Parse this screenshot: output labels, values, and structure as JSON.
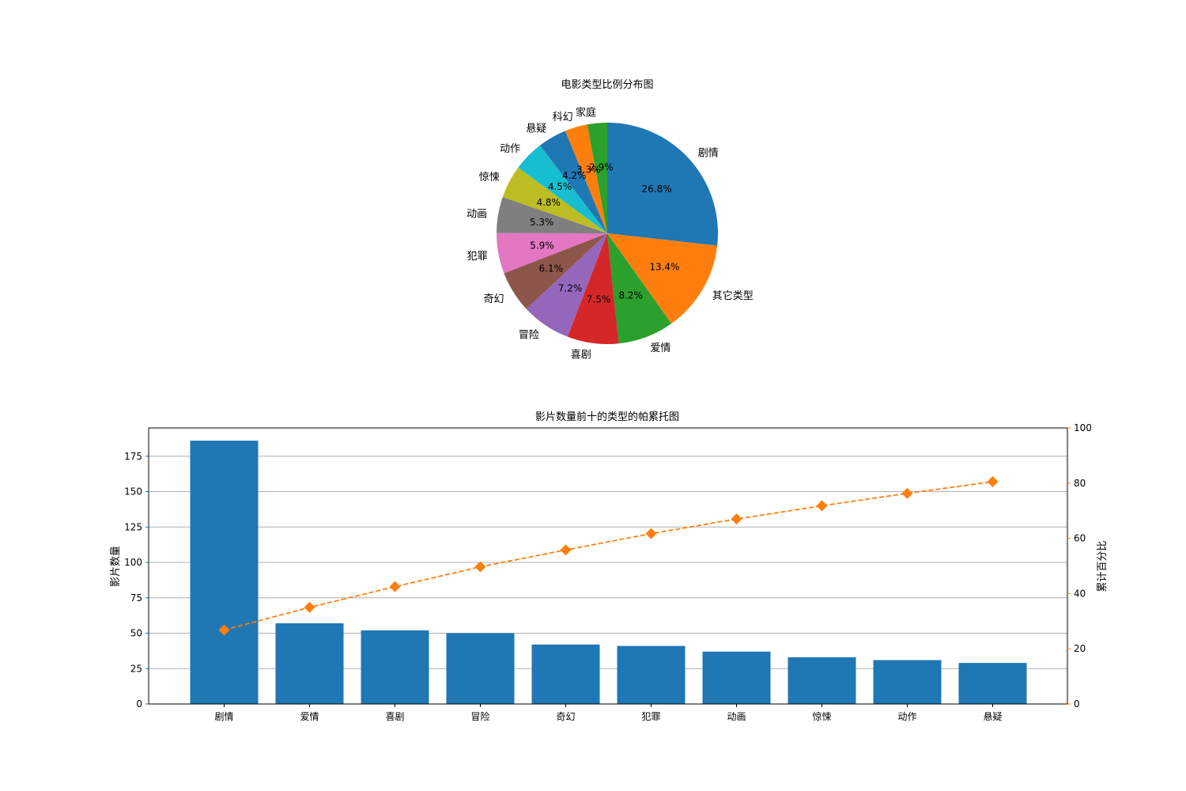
{
  "chart_data": [
    {
      "type": "pie",
      "title": "电影类型比例分布图",
      "slices": [
        {
          "label": "剧情",
          "pct": 26.8,
          "pct_label": "26.8%",
          "color": "#1f77b4"
        },
        {
          "label": "其它类型",
          "pct": 13.4,
          "pct_label": "13.4%",
          "color": "#ff7f0e"
        },
        {
          "label": "爱情",
          "pct": 8.2,
          "pct_label": "8.2%",
          "color": "#2ca02c"
        },
        {
          "label": "喜剧",
          "pct": 7.5,
          "pct_label": "7.5%",
          "color": "#d62728"
        },
        {
          "label": "冒险",
          "pct": 7.2,
          "pct_label": "7.2%",
          "color": "#9467bd"
        },
        {
          "label": "奇幻",
          "pct": 6.1,
          "pct_label": "6.1%",
          "color": "#8c564b"
        },
        {
          "label": "犯罪",
          "pct": 5.9,
          "pct_label": "5.9%",
          "color": "#e377c2"
        },
        {
          "label": "动画",
          "pct": 5.3,
          "pct_label": "5.3%",
          "color": "#7f7f7f"
        },
        {
          "label": "惊悚",
          "pct": 4.8,
          "pct_label": "4.8%",
          "color": "#bcbd22"
        },
        {
          "label": "动作",
          "pct": 4.5,
          "pct_label": "4.5%",
          "color": "#17becf"
        },
        {
          "label": "悬疑",
          "pct": 4.2,
          "pct_label": "4.2%",
          "color": "#1f77b4"
        },
        {
          "label": "科幻",
          "pct": 3.3,
          "pct_label": "3.3%",
          "color": "#ff7f0e"
        },
        {
          "label": "家庭",
          "pct": 2.9,
          "pct_label": "2.9%",
          "color": "#2ca02c"
        }
      ]
    },
    {
      "type": "bar",
      "title": "影片数量前十的类型的帕累托图",
      "categories": [
        "剧情",
        "爱情",
        "喜剧",
        "冒险",
        "奇幻",
        "犯罪",
        "动画",
        "惊悚",
        "动作",
        "悬疑"
      ],
      "values": [
        186,
        57,
        52,
        50,
        42,
        41,
        37,
        33,
        31,
        29
      ],
      "bar_color": "#1f77b4",
      "ylabel": "影片数量",
      "ylim": [
        0,
        195
      ],
      "yticks": [
        0,
        25,
        50,
        75,
        100,
        125,
        150,
        175
      ],
      "grid": true,
      "secondary_axis": {
        "type": "line",
        "ylabel": "累计百分比",
        "ylim": [
          0,
          100
        ],
        "yticks": [
          0,
          20,
          40,
          60,
          80,
          100
        ],
        "values": [
          26.8,
          35.0,
          42.5,
          49.7,
          55.8,
          61.7,
          67.0,
          71.8,
          76.3,
          80.5
        ],
        "color": "#ff7f0e",
        "line_style": "dashed",
        "marker": "diamond"
      }
    }
  ]
}
